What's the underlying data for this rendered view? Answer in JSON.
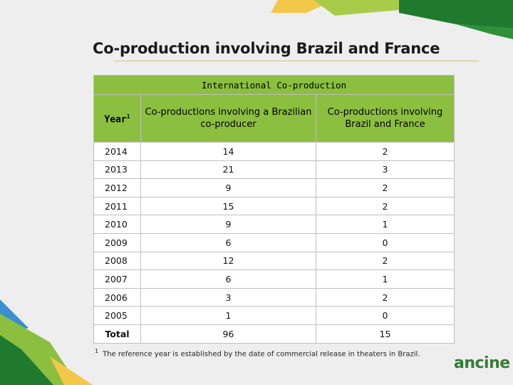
{
  "slide": {
    "title": "Co-production involving Brazil and France",
    "colors": {
      "header_green": "#8cbf3f",
      "deco_dark_green": "#1f7a30",
      "deco_yellow": "#f3c74a",
      "deco_blue": "#3a8fd1"
    }
  },
  "table": {
    "group_header": "International Co-production",
    "columns": {
      "year": "Year",
      "year_marker": "1",
      "brazilian": "Co-productions involving a Brazilian co-producer",
      "france": "Co-productions involving Brazil and France"
    },
    "rows": [
      {
        "year": "2014",
        "brazilian": "14",
        "france": "2"
      },
      {
        "year": "2013",
        "brazilian": "21",
        "france": "3"
      },
      {
        "year": "2012",
        "brazilian": "9",
        "france": "2"
      },
      {
        "year": "2011",
        "brazilian": "15",
        "france": "2"
      },
      {
        "year": "2010",
        "brazilian": "9",
        "france": "1"
      },
      {
        "year": "2009",
        "brazilian": "6",
        "france": "0"
      },
      {
        "year": "2008",
        "brazilian": "12",
        "france": "2"
      },
      {
        "year": "2007",
        "brazilian": "6",
        "france": "1"
      },
      {
        "year": "2006",
        "brazilian": "3",
        "france": "2"
      },
      {
        "year": "2005",
        "brazilian": "1",
        "france": "0"
      }
    ],
    "total": {
      "label": "Total",
      "brazilian": "96",
      "france": "15"
    }
  },
  "footnote": {
    "marker": "1",
    "text": "The reference year is established by the date of commercial release in theaters in Brazil."
  },
  "logo": {
    "part1": "an",
    "part2": "cine"
  }
}
